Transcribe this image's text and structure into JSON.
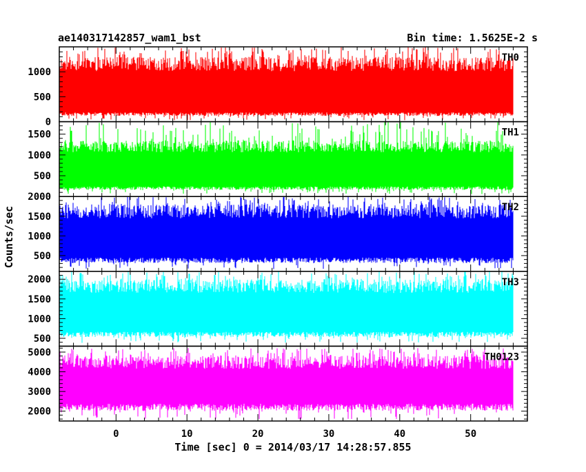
{
  "chart_data": {
    "type": "line",
    "title_left": "ae140317142857_wam1_bst",
    "title_right": "Bin time: 1.5625E-2 s",
    "xlabel": "Time [sec] 0 = 2014/03/17 14:28:57.855",
    "ylabel": "Counts/sec",
    "xlim": [
      -8,
      58
    ],
    "x_data_range": [
      -8,
      56
    ],
    "x_ticks": [
      0,
      10,
      20,
      30,
      40,
      50
    ],
    "x_tick_labels": [
      "0",
      "10",
      "20",
      "30",
      "40",
      "50"
    ],
    "grid": false,
    "panels": [
      {
        "name": "TH0",
        "color": "#ff0000",
        "ylim": [
          0,
          1500
        ],
        "y_ticks": [
          0,
          500,
          1000
        ],
        "y_tick_labels": [
          "0",
          "500",
          "1000"
        ],
        "typical_range": [
          150,
          1300
        ],
        "extreme_range": [
          30,
          1500
        ]
      },
      {
        "name": "TH1",
        "color": "#00ff00",
        "ylim": [
          0,
          1800
        ],
        "y_ticks": [
          500,
          1000,
          1500
        ],
        "y_tick_labels": [
          "500",
          "1000",
          "1500"
        ],
        "typical_range": [
          200,
          1350
        ],
        "extreme_range": [
          60,
          1800
        ]
      },
      {
        "name": "TH2",
        "color": "#0000ff",
        "ylim": [
          100,
          2000
        ],
        "y_ticks": [
          500,
          1000,
          1500,
          2000
        ],
        "y_tick_labels": [
          "500",
          "1000",
          "1500",
          "2000"
        ],
        "typical_range": [
          380,
          1800
        ],
        "extreme_range": [
          150,
          2000
        ]
      },
      {
        "name": "TH3",
        "color": "#00ffff",
        "ylim": [
          300,
          2200
        ],
        "y_ticks": [
          500,
          1000,
          1500,
          2000
        ],
        "y_tick_labels": [
          "500",
          "1000",
          "1500",
          "2000"
        ],
        "typical_range": [
          600,
          2000
        ],
        "extreme_range": [
          380,
          2200
        ]
      },
      {
        "name": "TH0123",
        "color": "#ff00ff",
        "ylim": [
          1500,
          5300
        ],
        "y_ticks": [
          2000,
          3000,
          4000,
          5000
        ],
        "y_tick_labels": [
          "2000",
          "3000",
          "4000",
          "5000"
        ],
        "typical_range": [
          2200,
          4800
        ],
        "extreme_range": [
          1600,
          5200
        ]
      }
    ]
  }
}
